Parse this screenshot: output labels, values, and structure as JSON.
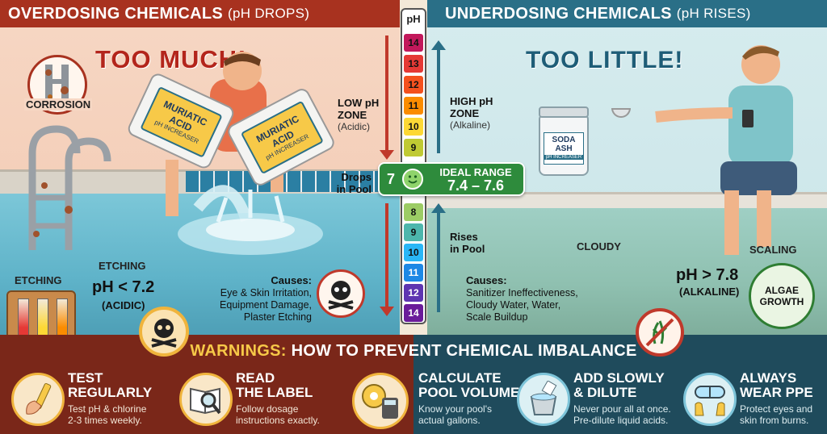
{
  "left_header": {
    "title": "OVERDOSING CHEMICALS",
    "subtitle": "(pH DROPS)"
  },
  "right_header": {
    "title": "UNDERDOSING CHEMICALS",
    "subtitle": "(pH RISES)"
  },
  "left": {
    "big_label": "TOO MUCH!",
    "corrosion": "CORROSION",
    "etching_1": "ETCHING",
    "etching_2": "ETCHING",
    "ph_value": "pH < 7.2",
    "ph_note": "(ACIDIC)",
    "jug_1": "MURIATIC ACID",
    "jug_1_sub": "pH INCREASER",
    "jug_2": "MURIATIC ACID",
    "jug_2_sub": "pH INCREASER",
    "causes_title": "Causes:",
    "causes": [
      "Eye & Skin Irritation,",
      "Equipment Damage,",
      "Plaster Etching"
    ],
    "zone_title_1": "LOW pH",
    "zone_title_2": "ZONE",
    "zone_note": "(Acidic)",
    "drops_1": "Drops",
    "drops_2": "in Pool"
  },
  "right": {
    "big_label": "TOO LITTLE!",
    "soda_1": "SODA",
    "soda_2": "ASH",
    "soda_sub": "pH INCREASER",
    "cloudy": "CLOUDY",
    "scaling": "SCALING",
    "ph_value": "pH > 7.8",
    "ph_note": "(ALKALINE)",
    "algae_1": "ALGAE",
    "algae_2": "GROWTH",
    "causes_title": "Causes:",
    "causes": [
      "Sanitizer Ineffectiveness,",
      "Cloudy Water, Water,",
      "Scale Buildup"
    ],
    "zone_title_1": "HIGH pH",
    "zone_title_2": "ZONE",
    "zone_note": "(Alkaline)",
    "rises_1": "Rises",
    "rises_2": "in Pool"
  },
  "ph_scale": {
    "header": "pH",
    "top_values": [
      "14",
      "13",
      "12",
      "11",
      "10",
      "9"
    ],
    "top_colors": [
      "#c2185b",
      "#e53935",
      "#f4511e",
      "#fb8c00",
      "#fdd835",
      "#c0ca33"
    ],
    "ideal_value": "7",
    "ideal_label": "IDEAL RANGE",
    "ideal_range": "7.4 – 7.6",
    "bottom_values": [
      "8",
      "9",
      "10",
      "11",
      "12",
      "14"
    ],
    "bottom_colors": [
      "#9ccc65",
      "#4db6ac",
      "#29b6f6",
      "#1e88e5",
      "#5e35b1",
      "#6a1b9a"
    ]
  },
  "warnings": {
    "title_accent": "WARNINGS:",
    "title_rest": "HOW TO PREVENT CHEMICAL IMBALANCE",
    "tips": [
      {
        "title_1": "TEST",
        "title_2": "REGULARLY",
        "desc_1": "Test pH & chlorine",
        "desc_2": "2-3 times weekly."
      },
      {
        "title_1": "READ",
        "title_2": "THE LABEL",
        "desc_1": "Follow dosage",
        "desc_2": "instructions exactly."
      },
      {
        "title_1": "CALCULATE",
        "title_2": "POOL VOLUME",
        "desc_1": "Know your pool's",
        "desc_2": "actual gallons."
      },
      {
        "title_1": "ADD SLOWLY",
        "title_2": "& DILUTE",
        "desc_1": "Never pour all at once.",
        "desc_2": "Pre-dilute liquid acids."
      },
      {
        "title_1": "ALWAYS",
        "title_2": "WEAR PPE",
        "desc_1": "Protect eyes and",
        "desc_2": "skin from burns."
      }
    ]
  },
  "colors": {
    "left_header": "#a8321f",
    "right_header": "#2a6f87",
    "ideal_green": "#2e8b3c",
    "warn_left": "#7a2719",
    "warn_right": "#1f4b5c"
  }
}
